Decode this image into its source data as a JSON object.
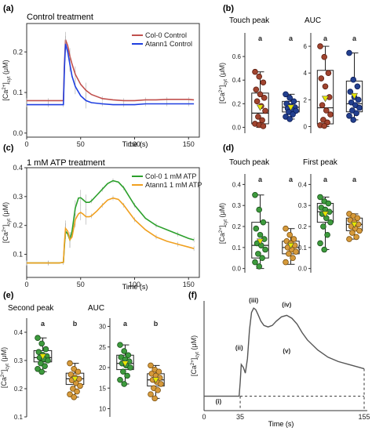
{
  "panels": {
    "a": {
      "tag": "(a)",
      "title": "Control treatment",
      "xlabel": "Time (s)"
    },
    "b": {
      "tag": "(b)",
      "sub1": "Touch peak",
      "sub2": "AUC"
    },
    "c": {
      "tag": "(c)",
      "title": "1 mM ATP treatment",
      "xlabel": "Time (s)"
    },
    "d": {
      "tag": "(d)",
      "sub1": "Touch peak",
      "sub2": "First peak"
    },
    "e": {
      "tag": "(e)",
      "sub1": "Second peak",
      "sub2": "AUC"
    },
    "f": {
      "tag": "(f)",
      "xlabel": "Time (s)"
    }
  },
  "colors": {
    "col0_control": "#c0504d",
    "atann1_control": "#1f3fe0",
    "col0_atp": "#2ca02c",
    "atann1_atp": "#f0a020",
    "box_navy": "#1f3a8a",
    "box_brown": "#8b3a2a",
    "box_green": "#2f8a2f",
    "box_tan": "#d59a3a",
    "mean_marker": "#e6e600"
  },
  "chart_data": [
    {
      "id": "a",
      "type": "line",
      "title": "Control treatment",
      "xlabel": "Time (s)",
      "ylabel": "[Ca2+]cyt (μM)",
      "xlim": [
        0,
        160
      ],
      "ylim": [
        -0.01,
        0.27
      ],
      "xticks": [
        "0",
        "50",
        "100",
        "150"
      ],
      "yticks": [
        "0.0",
        "0.1",
        "0.2"
      ],
      "series": [
        {
          "name": "Col-0 Control",
          "x": [
            0,
            10,
            20,
            30,
            34,
            35,
            36,
            38,
            40,
            42,
            45,
            50,
            55,
            60,
            70,
            80,
            90,
            100,
            110,
            120,
            130,
            140,
            150,
            155
          ],
          "y": [
            0.08,
            0.08,
            0.08,
            0.08,
            0.08,
            0.17,
            0.23,
            0.215,
            0.19,
            0.17,
            0.145,
            0.12,
            0.105,
            0.095,
            0.085,
            0.082,
            0.08,
            0.08,
            0.082,
            0.082,
            0.083,
            0.083,
            0.083,
            0.082
          ]
        },
        {
          "name": "Atann1 Control",
          "x": [
            0,
            10,
            20,
            30,
            34,
            35,
            36,
            38,
            40,
            42,
            45,
            50,
            55,
            60,
            70,
            80,
            90,
            100,
            110,
            120,
            130,
            140,
            150,
            155
          ],
          "y": [
            0.07,
            0.07,
            0.07,
            0.07,
            0.07,
            0.16,
            0.22,
            0.2,
            0.17,
            0.14,
            0.115,
            0.092,
            0.08,
            0.075,
            0.072,
            0.07,
            0.07,
            0.07,
            0.072,
            0.072,
            0.072,
            0.072,
            0.072,
            0.072
          ]
        }
      ]
    },
    {
      "id": "b1",
      "type": "box",
      "title": "Touch peak",
      "ylabel": "[Ca2+]cyt (μM)",
      "ylim": [
        -0.05,
        0.8
      ],
      "yticks": [
        "0.0",
        "0.2",
        "0.4",
        "0.6"
      ],
      "groups": [
        {
          "name": "Col-0",
          "sig": "a",
          "q1": 0.03,
          "median": 0.12,
          "q3": 0.29,
          "min": 0.0,
          "max": 0.47,
          "mean": 0.17,
          "points": [
            0.47,
            0.43,
            0.38,
            0.32,
            0.28,
            0.25,
            0.22,
            0.18,
            0.14,
            0.09,
            0.06,
            0.03,
            0.02,
            0.01
          ]
        },
        {
          "name": "Atann1",
          "sig": "a",
          "q1": 0.13,
          "median": 0.17,
          "q3": 0.22,
          "min": 0.07,
          "max": 0.28,
          "mean": 0.17,
          "points": [
            0.28,
            0.25,
            0.22,
            0.2,
            0.18,
            0.17,
            0.16,
            0.15,
            0.14,
            0.13,
            0.11,
            0.09,
            0.07
          ]
        }
      ]
    },
    {
      "id": "b2",
      "type": "box",
      "title": "AUC",
      "ylim": [
        -0.5,
        7
      ],
      "yticks": [
        "0",
        "2",
        "4",
        "6"
      ],
      "groups": [
        {
          "name": "Col-0",
          "sig": "a",
          "q1": 0.2,
          "median": 1.4,
          "q3": 4.2,
          "min": 0.0,
          "max": 6.0,
          "mean": 2.1,
          "points": [
            6.0,
            5.2,
            4.0,
            3.6,
            3.0,
            2.2,
            1.6,
            1.2,
            0.9,
            0.5,
            0.3,
            0.1,
            0.05
          ]
        },
        {
          "name": "Atann1",
          "sig": "a",
          "q1": 1.1,
          "median": 1.7,
          "q3": 3.4,
          "min": 0.5,
          "max": 5.5,
          "mean": 2.3,
          "points": [
            5.5,
            3.5,
            3.0,
            2.6,
            2.2,
            2.0,
            1.8,
            1.6,
            1.4,
            1.2,
            1.0,
            0.8,
            0.5
          ]
        }
      ]
    },
    {
      "id": "c",
      "type": "line",
      "title": "1 mM ATP treatment",
      "xlabel": "Time (s)",
      "ylabel": "[Ca2+]cyt (μM)",
      "xlim": [
        0,
        160
      ],
      "ylim": [
        0.02,
        0.4
      ],
      "xticks": [
        "0",
        "50",
        "100",
        "150"
      ],
      "yticks": [
        "0.1",
        "0.2",
        "0.3",
        "0.4"
      ],
      "series": [
        {
          "name": "Col-0 1 mM ATP",
          "x": [
            0,
            10,
            20,
            30,
            34,
            35,
            36,
            38,
            40,
            42,
            45,
            48,
            50,
            52,
            55,
            58,
            60,
            65,
            70,
            75,
            80,
            85,
            90,
            95,
            100,
            110,
            120,
            130,
            140,
            150,
            155
          ],
          "y": [
            0.07,
            0.07,
            0.07,
            0.07,
            0.072,
            0.13,
            0.18,
            0.17,
            0.15,
            0.18,
            0.26,
            0.295,
            0.296,
            0.29,
            0.28,
            0.28,
            0.285,
            0.305,
            0.325,
            0.345,
            0.355,
            0.35,
            0.33,
            0.3,
            0.27,
            0.225,
            0.2,
            0.185,
            0.17,
            0.155,
            0.15
          ]
        },
        {
          "name": "Atann1 1 mM ATP",
          "x": [
            0,
            10,
            20,
            30,
            34,
            35,
            36,
            38,
            40,
            42,
            45,
            48,
            50,
            52,
            55,
            58,
            60,
            65,
            70,
            75,
            80,
            85,
            90,
            95,
            100,
            110,
            120,
            130,
            140,
            150,
            155
          ],
          "y": [
            0.07,
            0.07,
            0.07,
            0.07,
            0.072,
            0.14,
            0.19,
            0.18,
            0.15,
            0.16,
            0.22,
            0.24,
            0.245,
            0.24,
            0.23,
            0.23,
            0.233,
            0.25,
            0.27,
            0.288,
            0.295,
            0.29,
            0.27,
            0.245,
            0.22,
            0.185,
            0.16,
            0.145,
            0.135,
            0.125,
            0.12
          ]
        }
      ]
    },
    {
      "id": "d1",
      "type": "box",
      "title": "Touch peak",
      "ylabel": "[Ca2+]cyt (μM)",
      "ylim": [
        -0.02,
        0.45
      ],
      "yticks": [
        "0.0",
        "0.1",
        "0.2",
        "0.3",
        "0.4"
      ],
      "groups": [
        {
          "name": "Col-0",
          "sig": "a",
          "q1": 0.05,
          "median": 0.11,
          "q3": 0.22,
          "min": 0.0,
          "max": 0.35,
          "mean": 0.13,
          "points": [
            0.35,
            0.28,
            0.22,
            0.19,
            0.16,
            0.14,
            0.12,
            0.11,
            0.09,
            0.07,
            0.05,
            0.03,
            0.01
          ]
        },
        {
          "name": "Atann1",
          "sig": "a",
          "q1": 0.07,
          "median": 0.1,
          "q3": 0.13,
          "min": 0.02,
          "max": 0.19,
          "mean": 0.11,
          "points": [
            0.19,
            0.16,
            0.14,
            0.13,
            0.12,
            0.11,
            0.1,
            0.09,
            0.08,
            0.07,
            0.05,
            0.03
          ]
        }
      ]
    },
    {
      "id": "d2",
      "type": "box",
      "title": "First peak",
      "ylim": [
        -0.02,
        0.45
      ],
      "yticks": [
        "0.0",
        "0.1",
        "0.2",
        "0.3",
        "0.4"
      ],
      "groups": [
        {
          "name": "Col-0",
          "sig": "a",
          "q1": 0.22,
          "median": 0.27,
          "q3": 0.31,
          "min": 0.09,
          "max": 0.34,
          "mean": 0.26,
          "points": [
            0.34,
            0.32,
            0.31,
            0.29,
            0.28,
            0.27,
            0.26,
            0.24,
            0.22,
            0.2,
            0.16,
            0.12,
            0.09
          ]
        },
        {
          "name": "Atann1",
          "sig": "a",
          "q1": 0.18,
          "median": 0.21,
          "q3": 0.24,
          "min": 0.14,
          "max": 0.26,
          "mean": 0.21,
          "points": [
            0.26,
            0.25,
            0.24,
            0.23,
            0.22,
            0.21,
            0.2,
            0.19,
            0.18,
            0.17,
            0.15,
            0.14
          ]
        }
      ]
    },
    {
      "id": "e1",
      "type": "box",
      "title": "Second peak",
      "ylabel": "[Ca2+]cyt (μM)",
      "ylim": [
        0.1,
        0.45
      ],
      "yticks": [
        "0.1",
        "0.2",
        "0.3",
        "0.4"
      ],
      "groups": [
        {
          "name": "Col-0",
          "sig": "a",
          "q1": 0.295,
          "median": 0.31,
          "q3": 0.335,
          "min": 0.26,
          "max": 0.38,
          "mean": 0.315,
          "points": [
            0.38,
            0.36,
            0.34,
            0.33,
            0.32,
            0.315,
            0.31,
            0.305,
            0.3,
            0.29,
            0.28,
            0.27,
            0.26
          ]
        },
        {
          "name": "Atann1",
          "sig": "b",
          "q1": 0.215,
          "median": 0.235,
          "q3": 0.255,
          "min": 0.17,
          "max": 0.29,
          "mean": 0.235,
          "points": [
            0.29,
            0.27,
            0.26,
            0.25,
            0.24,
            0.235,
            0.23,
            0.22,
            0.21,
            0.2,
            0.19,
            0.18,
            0.17
          ]
        }
      ]
    },
    {
      "id": "e2",
      "type": "box",
      "title": "AUC",
      "ylim": [
        8,
        32
      ],
      "yticks": [
        "10",
        "15",
        "20",
        "25",
        "30"
      ],
      "groups": [
        {
          "name": "Col-0",
          "sig": "a",
          "q1": 19.5,
          "median": 21,
          "q3": 23,
          "min": 16,
          "max": 25.5,
          "mean": 21,
          "points": [
            25.5,
            24,
            23,
            22.5,
            22,
            21.5,
            21,
            20.5,
            20,
            19,
            18,
            17,
            16
          ]
        },
        {
          "name": "Atann1",
          "sig": "b",
          "q1": 15.5,
          "median": 17,
          "q3": 18.5,
          "min": 12.5,
          "max": 20.5,
          "mean": 17,
          "points": [
            20.5,
            19.5,
            19,
            18.5,
            18,
            17.5,
            17,
            16.5,
            16,
            15,
            14.5,
            13.5,
            12.5
          ]
        }
      ]
    },
    {
      "id": "f",
      "type": "line",
      "xlabel": "Time (s)",
      "ylabel": "[Ca2+]cyt (μM)",
      "xticks": [
        "0",
        "35",
        "155"
      ],
      "annotations": [
        "(i)",
        "(ii)",
        "(iii)",
        "(iv)",
        "(v)"
      ],
      "series": [
        {
          "x": [
            0,
            10,
            20,
            30,
            34,
            35,
            36,
            38,
            40,
            42,
            44,
            46,
            48,
            50,
            52,
            55,
            58,
            62,
            66,
            70,
            75,
            80,
            85,
            90,
            95,
            100,
            110,
            120,
            130,
            140,
            150,
            155
          ],
          "y": [
            0.07,
            0.07,
            0.07,
            0.07,
            0.07,
            0.12,
            0.18,
            0.17,
            0.15,
            0.2,
            0.3,
            0.36,
            0.375,
            0.37,
            0.355,
            0.33,
            0.315,
            0.31,
            0.315,
            0.33,
            0.345,
            0.35,
            0.34,
            0.32,
            0.29,
            0.265,
            0.23,
            0.205,
            0.19,
            0.18,
            0.17,
            0.165
          ]
        }
      ]
    }
  ]
}
